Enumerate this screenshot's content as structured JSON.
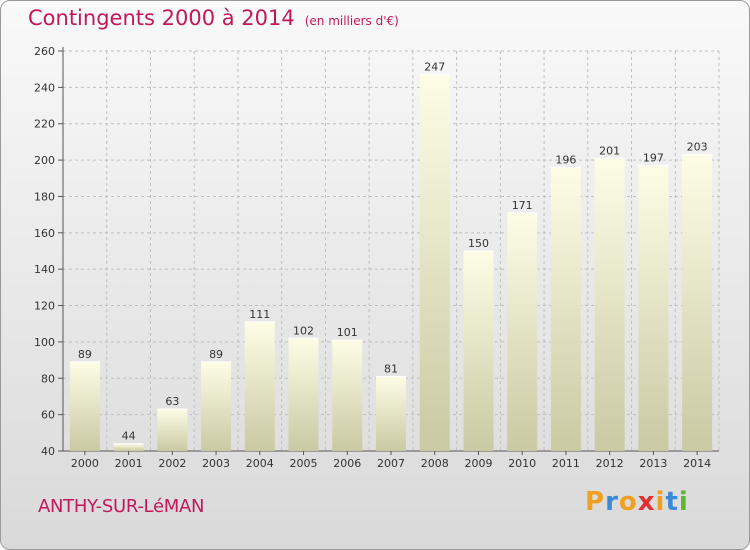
{
  "chart_data": {
    "type": "bar",
    "title": "Contingents 2000 à 2014",
    "subtitle": "(en milliers d'€)",
    "categories": [
      "2000",
      "2001",
      "2002",
      "2003",
      "2004",
      "2005",
      "2006",
      "2007",
      "2008",
      "2009",
      "2010",
      "2011",
      "2012",
      "2013",
      "2014"
    ],
    "values": [
      89,
      44,
      63,
      89,
      111,
      102,
      101,
      81,
      247,
      150,
      171,
      196,
      201,
      197,
      203
    ],
    "ylim": [
      40,
      260
    ],
    "yticks": [
      40,
      60,
      80,
      100,
      120,
      140,
      160,
      180,
      200,
      220,
      240,
      260
    ],
    "grid": true,
    "xlabel": "",
    "ylabel": ""
  },
  "footer": {
    "city": "ANTHY-SUR-LéMAN",
    "logo_letters": [
      "P",
      "r",
      "o",
      "x",
      "i",
      "t",
      "i"
    ],
    "logo_colors": [
      "#f0a020",
      "#3a8ad8",
      "#f0a020",
      "#e03030",
      "#f0a020",
      "#3a8ad8",
      "#5cb82e"
    ]
  },
  "colors": {
    "title": "#c2185b",
    "bar_top": "#fdfde6",
    "bar_bottom": "#c9c9a3"
  }
}
